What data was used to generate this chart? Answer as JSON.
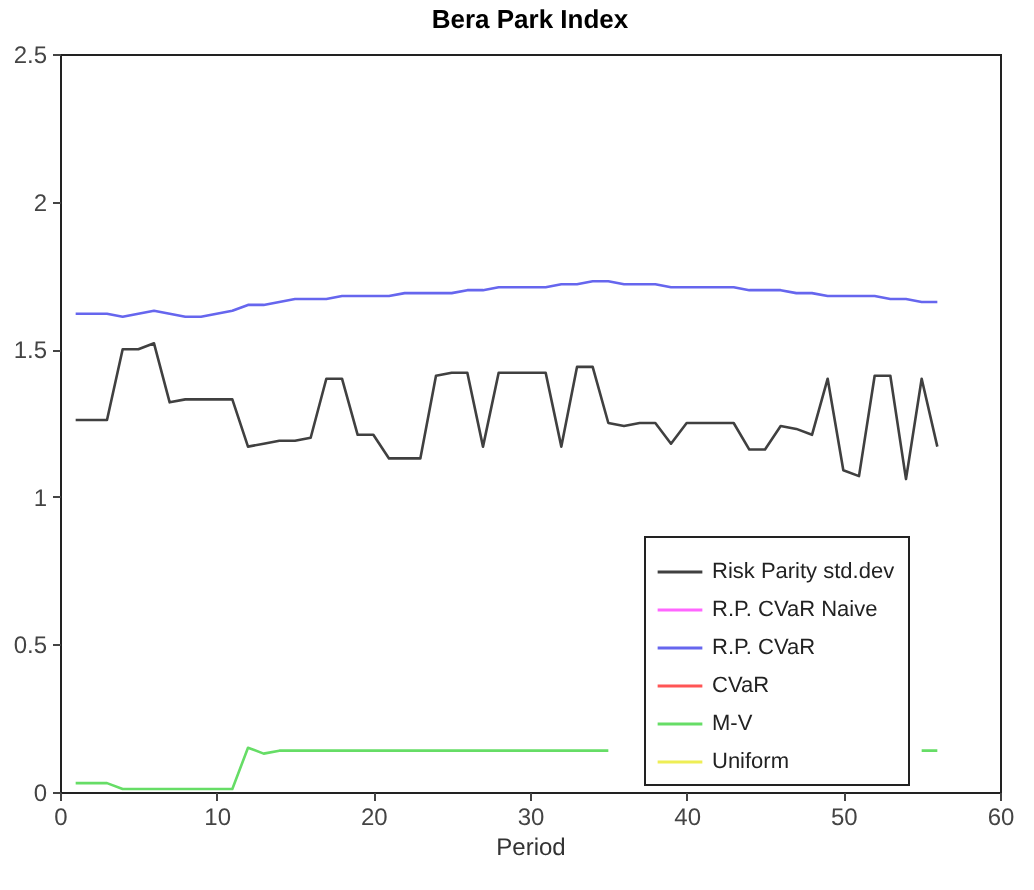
{
  "chart_data": {
    "type": "line",
    "title": "Bera Park Index",
    "xlabel": "Period",
    "x": [
      1,
      2,
      3,
      4,
      5,
      6,
      7,
      8,
      9,
      10,
      11,
      12,
      13,
      14,
      15,
      16,
      17,
      18,
      19,
      20,
      21,
      22,
      23,
      24,
      25,
      26,
      27,
      28,
      29,
      30,
      31,
      32,
      33,
      34,
      35,
      36,
      37,
      38,
      39,
      40,
      41,
      42,
      43,
      44,
      45,
      46,
      47,
      48,
      49,
      50,
      51,
      52,
      53,
      54,
      55,
      56
    ],
    "series": [
      {
        "name": "Risk Parity std.dev",
        "color": "#404040",
        "values": [
          1.26,
          1.26,
          1.26,
          1.5,
          1.5,
          1.52,
          1.32,
          1.33,
          1.33,
          1.33,
          1.33,
          1.17,
          1.18,
          1.19,
          1.19,
          1.2,
          1.4,
          1.4,
          1.21,
          1.21,
          1.13,
          1.13,
          1.13,
          1.41,
          1.42,
          1.42,
          1.17,
          1.42,
          1.42,
          1.42,
          1.42,
          1.17,
          1.44,
          1.44,
          1.25,
          1.24,
          1.25,
          1.25,
          1.18,
          1.25,
          1.25,
          1.25,
          1.25,
          1.16,
          1.16,
          1.24,
          1.23,
          1.21,
          1.4,
          1.09,
          1.07,
          1.41,
          1.41,
          1.06,
          1.4,
          1.17
        ]
      },
      {
        "name": "R.P. CVaR Naive",
        "color": "#ff66ff",
        "values": [
          null,
          null,
          null,
          null,
          null,
          null,
          null,
          null,
          null,
          null,
          null,
          null,
          null,
          null,
          null,
          null,
          null,
          null,
          null,
          null,
          null,
          null,
          null,
          null,
          null,
          null,
          null,
          null,
          null,
          null,
          null,
          null,
          null,
          null,
          null,
          null,
          null,
          null,
          null,
          null,
          null,
          null,
          null,
          null,
          null,
          null,
          null,
          null,
          null,
          null,
          null,
          null,
          null,
          null,
          null,
          null
        ]
      },
      {
        "name": "R.P. CVaR",
        "color": "#6666ee",
        "values": [
          1.62,
          1.62,
          1.62,
          1.61,
          1.62,
          1.63,
          1.62,
          1.61,
          1.61,
          1.62,
          1.63,
          1.65,
          1.65,
          1.66,
          1.67,
          1.67,
          1.67,
          1.68,
          1.68,
          1.68,
          1.68,
          1.69,
          1.69,
          1.69,
          1.69,
          1.7,
          1.7,
          1.71,
          1.71,
          1.71,
          1.71,
          1.72,
          1.72,
          1.73,
          1.73,
          1.72,
          1.72,
          1.72,
          1.71,
          1.71,
          1.71,
          1.71,
          1.71,
          1.7,
          1.7,
          1.7,
          1.69,
          1.69,
          1.68,
          1.68,
          1.68,
          1.68,
          1.67,
          1.67,
          1.66,
          1.66
        ]
      },
      {
        "name": "CVaR",
        "color": "#ff5555",
        "values": [
          null,
          null,
          null,
          null,
          null,
          null,
          null,
          null,
          null,
          null,
          null,
          null,
          null,
          null,
          null,
          null,
          null,
          null,
          null,
          null,
          null,
          null,
          null,
          null,
          null,
          null,
          null,
          null,
          null,
          null,
          null,
          null,
          null,
          null,
          null,
          null,
          null,
          null,
          null,
          null,
          null,
          null,
          null,
          null,
          null,
          null,
          null,
          null,
          null,
          null,
          null,
          null,
          null,
          null,
          null,
          null
        ]
      },
      {
        "name": "M-V",
        "color": "#66dd66",
        "values": [
          0.03,
          0.03,
          0.03,
          0.01,
          0.01,
          0.01,
          0.01,
          0.01,
          0.01,
          0.01,
          0.01,
          0.15,
          0.13,
          0.14,
          0.14,
          0.14,
          0.14,
          0.14,
          0.14,
          0.14,
          0.14,
          0.14,
          0.14,
          0.14,
          0.14,
          0.14,
          0.14,
          0.14,
          0.14,
          0.14,
          0.14,
          0.14,
          0.14,
          0.14,
          0.14,
          null,
          null,
          null,
          null,
          null,
          null,
          null,
          null,
          null,
          null,
          null,
          null,
          null,
          null,
          null,
          null,
          null,
          null,
          null,
          0.14,
          0.14
        ]
      },
      {
        "name": "Uniform",
        "color": "#eeee55",
        "values": [
          null,
          null,
          null,
          null,
          null,
          null,
          null,
          null,
          null,
          null,
          null,
          null,
          null,
          null,
          null,
          null,
          null,
          null,
          null,
          null,
          null,
          null,
          null,
          null,
          null,
          null,
          null,
          null,
          null,
          null,
          null,
          null,
          null,
          null,
          null,
          null,
          null,
          null,
          null,
          null,
          null,
          null,
          null,
          null,
          null,
          null,
          null,
          null,
          null,
          null,
          null,
          null,
          null,
          null,
          null,
          null
        ]
      }
    ],
    "xlim": [
      0,
      60
    ],
    "xticks": [
      0,
      10,
      20,
      30,
      40,
      50,
      60
    ],
    "ylim": [
      0,
      2.5
    ],
    "yticks": [
      0,
      0.5,
      1,
      1.5,
      2,
      2.5
    ],
    "legend": "bottom right",
    "grid": false,
    "marker": "none",
    "line_style": "solid"
  }
}
